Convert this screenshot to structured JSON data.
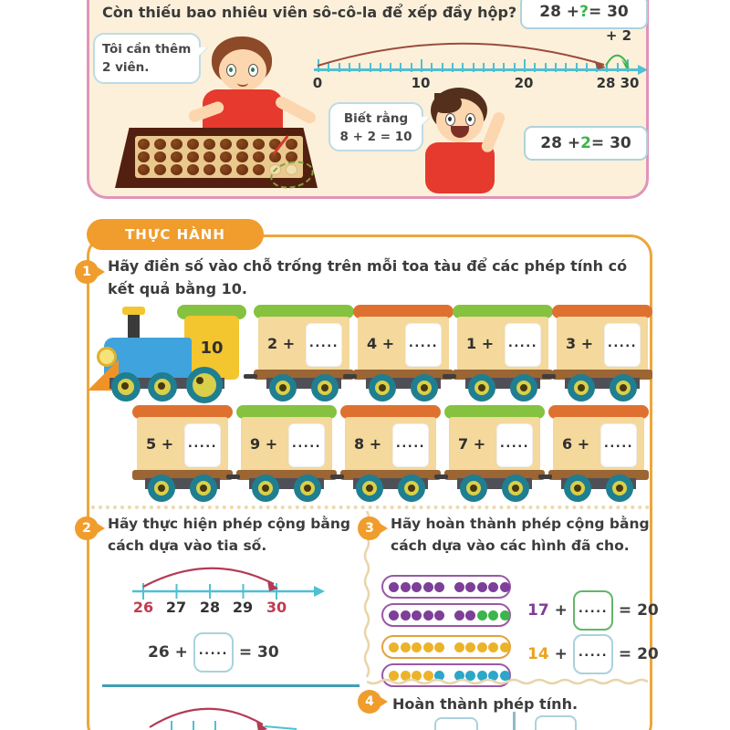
{
  "intro": {
    "question": "Còn thiếu bao nhiêu viên sô-cô-la để xếp đầy hộp?",
    "speech_boy1": {
      "line1": "Tôi cần thêm",
      "line2": "2 viên."
    },
    "speech_boy2": {
      "line1": "Biết  rằng",
      "line2": "8 + 2 = 10"
    },
    "eq_top": {
      "lhs": "28 + ",
      "unknown": "?",
      "rhs": " = 30"
    },
    "eq_result": {
      "lhs": "28 + ",
      "highlight": "2",
      "rhs": " = 30"
    },
    "numberline": {
      "units": 30,
      "tick_labels": [
        "0",
        "10",
        "20",
        "28",
        "30"
      ],
      "jump": "+ 2"
    },
    "tray": {
      "rows": 3,
      "cols": 10,
      "filled": 28,
      "empty": 2
    }
  },
  "practice": {
    "banner": "THỰC HÀNH",
    "ex1": {
      "num": "1",
      "prompt": "Hãy điền số vào chỗ trống trên mỗi toa tàu để các phép tính có kết quả bằng 10.",
      "engine": "10",
      "blank": ".....",
      "rows": [
        {
          "cars": [
            {
              "label": "2 +",
              "roof": "green"
            },
            {
              "label": "4 +",
              "roof": "orange"
            },
            {
              "label": "1 +",
              "roof": "green"
            },
            {
              "label": "3 +",
              "roof": "orange"
            }
          ]
        },
        {
          "cars": [
            {
              "label": "5 +",
              "roof": "orange"
            },
            {
              "label": "9 +",
              "roof": "green"
            },
            {
              "label": "8 +",
              "roof": "orange"
            },
            {
              "label": "7 +",
              "roof": "green"
            },
            {
              "label": "6 +",
              "roof": "orange"
            }
          ]
        }
      ]
    },
    "ex2": {
      "num": "2",
      "prompt": "Hãy thực hiện phép cộng bằng cách dựa vào tia số.",
      "ticks": [
        "26",
        "27",
        "28",
        "29",
        "30"
      ],
      "equation": {
        "lhs": "26 +",
        "blank": ".....",
        "rhs": "= 30"
      }
    },
    "ex3": {
      "num": "3",
      "prompt": "Hãy hoàn thành phép cộng bằng cách dựa vào các hình đã cho.",
      "groups": [
        {
          "capsules": [
            {
              "border": "#9a58a5",
              "dots": [
                {
                  "color": "#7d3f98",
                  "count": 10
                }
              ]
            },
            {
              "border": "#9a58a5",
              "dots": [
                {
                  "color": "#7d3f98",
                  "count": 7
                },
                {
                  "color": "#3cb54a",
                  "count": 3
                }
              ]
            }
          ],
          "equation": {
            "lhs": "17",
            "op": "+",
            "blank": ".....",
            "rhs": "= 20"
          }
        },
        {
          "capsules": [
            {
              "border": "#e2a23c",
              "dots": [
                {
                  "color": "#ecb32a",
                  "count": 10
                }
              ]
            },
            {
              "border": "#9a58a5",
              "dots": [
                {
                  "color": "#ecb32a",
                  "count": 4
                },
                {
                  "color": "#2ba7c9",
                  "count": 6
                }
              ]
            }
          ],
          "equation": {
            "lhs": "14",
            "op": "+",
            "blank": ".....",
            "rhs": "= 20"
          }
        }
      ]
    },
    "ex4": {
      "num": "4",
      "prompt": "Hoàn thành phép tính."
    }
  },
  "colors": {
    "card_bg": "#fcf0da",
    "card_border": "#e293b8",
    "orange": "#f09d2d",
    "teal_line": "#4fc0d4",
    "arc_red": "#9c4b3e",
    "arc_crimson": "#b43a55",
    "green": "#3cb54a",
    "purple": "#7d3f98",
    "yellow_dot": "#ecb32a",
    "blue_dot": "#2ba7c9",
    "car_body": "#f4d89c",
    "roof_green": "#85c23f",
    "roof_orange": "#df7130",
    "shirt_red": "#e63a2e"
  }
}
